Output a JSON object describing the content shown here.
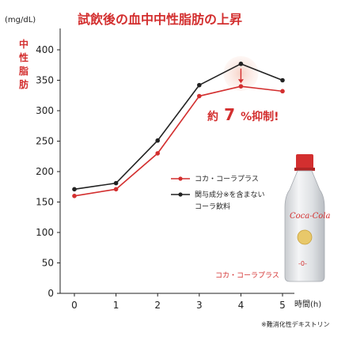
{
  "chart_data": {
    "type": "line",
    "title": "試飲後の血中中性脂肪の上昇",
    "y_unit": "(mg/dL)",
    "ylabel": "中性脂肪",
    "xlabel": "時間(h)",
    "x": [
      0,
      1,
      2,
      3,
      4,
      5
    ],
    "ylim": [
      0,
      400
    ],
    "yticks": [
      0,
      50,
      100,
      150,
      200,
      250,
      300,
      350,
      400
    ],
    "series": [
      {
        "name": "コカ・コーラプラス",
        "color": "#d32f2f",
        "values": [
          160,
          171,
          230,
          324,
          340,
          332
        ]
      },
      {
        "name": "関与成分※を含まないコーラ飲料",
        "color": "#222222",
        "values": [
          171,
          181,
          251,
          342,
          377,
          350
        ]
      }
    ],
    "legend_lines": [
      [
        "コカ・コーラプラス"
      ],
      [
        "関与成分※を含まない",
        "コーラ飲料"
      ]
    ],
    "legend_position": "center-right",
    "annotation": {
      "prefix": "約",
      "value": "7",
      "suffix": "%抑制!"
    },
    "product_label": "コカ・コーラプラス",
    "bottle_text": {
      "brand": "Coca-Cola",
      "zero": "-0-"
    },
    "footnote": "※難消化性デキストリン",
    "grid": false
  }
}
